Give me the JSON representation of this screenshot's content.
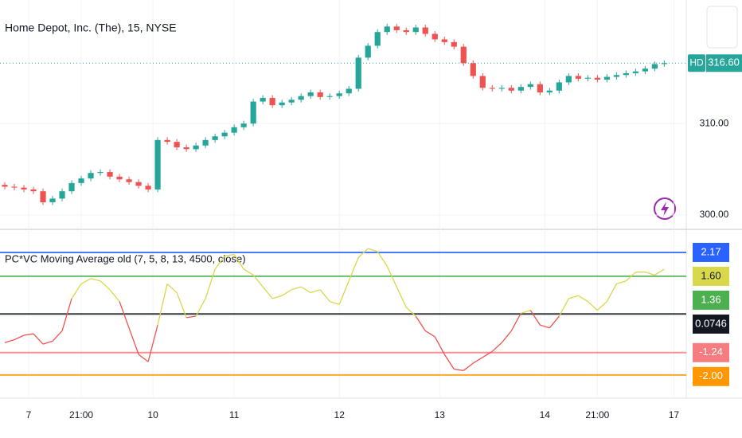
{
  "chart_data": [
    {
      "type": "candlestick",
      "title": "Home Depot, Inc. (The), 15, NYSE",
      "symbol": "HD",
      "x": [
        0,
        1,
        2,
        3,
        4,
        5,
        6,
        7,
        8,
        9,
        10,
        11,
        12,
        13,
        14,
        15,
        16,
        17,
        18,
        19,
        20,
        21,
        22,
        23,
        24,
        25,
        26,
        27,
        28,
        29,
        30,
        31,
        32,
        33,
        34,
        35,
        36,
        37,
        38,
        39,
        40,
        41,
        42,
        43,
        44,
        45,
        46,
        47,
        48,
        49,
        50,
        51,
        52,
        53,
        54,
        55,
        56,
        57,
        58,
        59,
        60,
        61,
        62,
        63,
        64,
        65,
        66,
        67,
        68,
        69
      ],
      "open": [
        303.3,
        303.1,
        303.0,
        302.8,
        302.6,
        301.4,
        301.8,
        302.6,
        303.5,
        304.0,
        304.6,
        304.7,
        304.2,
        303.9,
        303.6,
        303.2,
        302.8,
        308.2,
        308.0,
        307.4,
        307.2,
        307.6,
        308.2,
        308.6,
        309.0,
        309.6,
        310.0,
        312.4,
        312.8,
        312.0,
        312.3,
        312.6,
        313.0,
        313.4,
        312.9,
        313.0,
        313.3,
        313.8,
        317.2,
        318.5,
        320.0,
        320.6,
        320.2,
        320.0,
        320.5,
        319.8,
        319.2,
        318.9,
        318.4,
        316.6,
        315.2,
        313.9,
        313.8,
        313.9,
        313.6,
        314.0,
        314.3,
        313.4,
        313.6,
        314.5,
        315.2,
        314.9,
        315.0,
        314.8,
        315.1,
        315.3,
        315.5,
        315.7,
        316.0,
        316.5
      ],
      "high": [
        303.6,
        303.4,
        303.3,
        303.1,
        302.9,
        302.1,
        302.9,
        303.8,
        304.3,
        304.9,
        305.0,
        305.0,
        304.5,
        304.2,
        303.9,
        303.5,
        308.5,
        308.5,
        308.3,
        307.7,
        307.9,
        308.5,
        308.9,
        309.3,
        309.9,
        310.3,
        312.7,
        313.1,
        313.1,
        312.6,
        312.9,
        313.3,
        313.7,
        313.7,
        313.3,
        313.6,
        314.1,
        317.5,
        318.8,
        320.3,
        320.9,
        320.9,
        320.5,
        320.8,
        320.8,
        320.1,
        319.5,
        319.2,
        318.7,
        316.9,
        315.5,
        314.2,
        314.2,
        314.2,
        314.3,
        314.6,
        314.6,
        313.9,
        314.8,
        315.5,
        315.5,
        315.3,
        315.3,
        315.4,
        315.6,
        315.8,
        316.0,
        316.3,
        316.8,
        316.9
      ],
      "low": [
        302.8,
        302.7,
        302.5,
        302.3,
        301.1,
        301.1,
        301.5,
        302.3,
        303.2,
        303.7,
        304.3,
        303.9,
        303.6,
        303.3,
        302.9,
        302.5,
        302.5,
        307.7,
        307.1,
        306.9,
        306.9,
        307.3,
        307.9,
        308.3,
        308.7,
        309.3,
        309.7,
        312.1,
        311.7,
        311.7,
        312.0,
        312.3,
        312.7,
        312.6,
        312.6,
        312.7,
        313.0,
        313.5,
        316.9,
        318.2,
        319.7,
        319.9,
        319.7,
        319.7,
        319.5,
        318.9,
        318.6,
        318.1,
        316.3,
        314.9,
        313.6,
        313.5,
        313.5,
        313.3,
        313.3,
        313.7,
        313.1,
        313.1,
        313.3,
        314.2,
        314.6,
        314.6,
        314.5,
        314.5,
        314.8,
        315.0,
        315.2,
        315.4,
        315.7,
        316.2
      ],
      "close": [
        303.1,
        303.0,
        302.8,
        302.6,
        301.4,
        301.8,
        302.6,
        303.5,
        304.0,
        304.6,
        304.7,
        304.2,
        303.9,
        303.6,
        303.2,
        302.8,
        308.2,
        308.0,
        307.4,
        307.2,
        307.6,
        308.2,
        308.6,
        309.0,
        309.6,
        310.0,
        312.4,
        312.8,
        312.0,
        312.3,
        312.6,
        313.0,
        313.4,
        312.9,
        313.0,
        313.3,
        313.8,
        317.2,
        318.5,
        320.0,
        320.6,
        320.2,
        320.0,
        320.5,
        319.8,
        319.2,
        318.9,
        318.4,
        316.6,
        315.2,
        313.9,
        313.8,
        313.9,
        313.6,
        314.0,
        314.3,
        313.4,
        313.6,
        314.5,
        315.2,
        314.9,
        315.0,
        314.8,
        315.1,
        315.3,
        315.5,
        315.7,
        316.0,
        316.5,
        316.6
      ],
      "last_price": {
        "value": 316.6,
        "label": "316.60"
      },
      "up_color": "#26a69a",
      "down_color": "#ef5350",
      "xlim": [
        -0.5,
        71.3
      ],
      "ylim": [
        298.7,
        323.5
      ],
      "yticks": [
        {
          "value": 300,
          "label": "300.00"
        },
        {
          "value": 310,
          "label": "310.00"
        }
      ],
      "grid": true
    },
    {
      "type": "indicator",
      "title": "PC*VC Moving Average old (7, 5, 8, 13, 4500, close)",
      "x": [
        0,
        1,
        2,
        3,
        4,
        5,
        6,
        7,
        8,
        9,
        10,
        11,
        12,
        13,
        14,
        15,
        16,
        17,
        18,
        19,
        20,
        21,
        22,
        23,
        24,
        25,
        26,
        27,
        28,
        29,
        30,
        31,
        32,
        33,
        34,
        35,
        36,
        37,
        38,
        39,
        40,
        41,
        42,
        43,
        44,
        45,
        46,
        47,
        48,
        49,
        50,
        51,
        52,
        53,
        54,
        55,
        56,
        57,
        58,
        59,
        60,
        61,
        62,
        63,
        64,
        65,
        66,
        67,
        68,
        69
      ],
      "values": [
        -0.9,
        -0.8,
        -0.65,
        -0.6,
        -0.95,
        -0.85,
        -0.5,
        0.6,
        1.1,
        1.28,
        1.2,
        0.9,
        0.5,
        -0.4,
        -1.3,
        -1.55,
        -0.3,
        1.1,
        0.8,
        -0.05,
        0.0,
        0.6,
        1.6,
        2.05,
        2.1,
        1.6,
        1.4,
        1.0,
        0.6,
        0.7,
        0.9,
        1.0,
        0.8,
        0.9,
        0.5,
        0.4,
        1.2,
        2.0,
        2.3,
        2.2,
        1.7,
        1.0,
        0.3,
        0.0,
        -0.5,
        -0.7,
        -1.3,
        -1.8,
        -1.85,
        -1.6,
        -1.4,
        -1.2,
        -0.9,
        -0.5,
        0.1,
        0.2,
        -0.3,
        -0.4,
        0.0,
        0.6,
        0.7,
        0.5,
        0.2,
        0.5,
        1.1,
        1.2,
        1.5,
        1.5,
        1.4,
        1.6
      ],
      "last_value": {
        "value": 1.6,
        "label": "1.60"
      },
      "above_color": "#d8d84a",
      "below_color": "#ef5350",
      "levels": [
        {
          "value": 2.17,
          "color": "#2962ff"
        },
        {
          "value": 1.36,
          "color": "#4caf50"
        },
        {
          "value": 0.0746,
          "color": "#131722"
        },
        {
          "value": -1.24,
          "color": "#f77c80"
        },
        {
          "value": -2.0,
          "label": "-2.00",
          "color": "#ff9800"
        }
      ],
      "xlim": [
        -0.5,
        71.3
      ],
      "ylim": [
        -2.79,
        2.9
      ],
      "xticks": [
        {
          "value": 2.5,
          "label": "7"
        },
        {
          "value": 8,
          "label": "21:00"
        },
        {
          "value": 15.5,
          "label": "10"
        },
        {
          "value": 24,
          "label": "11"
        },
        {
          "value": 35,
          "label": "12"
        },
        {
          "value": 45.5,
          "label": "13"
        },
        {
          "value": 56.5,
          "label": "14"
        },
        {
          "value": 62,
          "label": "21:00"
        },
        {
          "value": 70,
          "label": "17"
        }
      ]
    }
  ]
}
